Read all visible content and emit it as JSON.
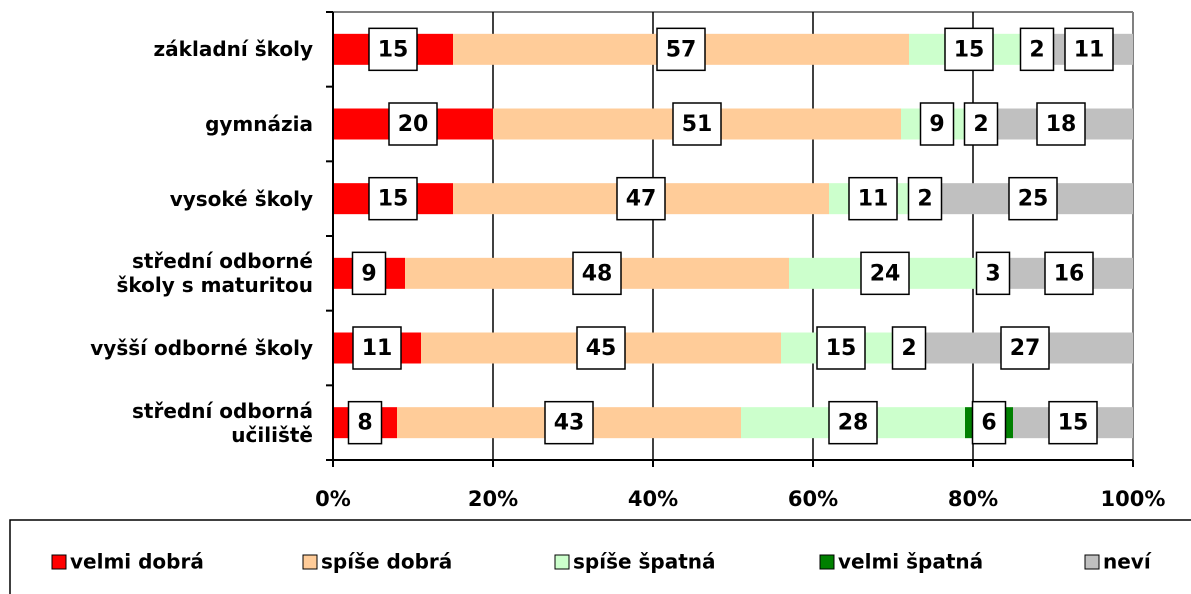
{
  "chart_data": {
    "type": "bar",
    "orientation": "horizontal",
    "stacked": true,
    "categories": [
      "základní školy",
      "gymnázia",
      "vysoké školy",
      "střední odborné\nškoly s maturitou",
      "vyšší odborné školy",
      "střední odborná\nučiliště"
    ],
    "series": [
      {
        "name": "velmi dobrá",
        "color": "#ff0000",
        "values": [
          15,
          20,
          15,
          9,
          11,
          8
        ]
      },
      {
        "name": "spíše dobrá",
        "color": "#ffcc99",
        "values": [
          57,
          51,
          47,
          48,
          45,
          43
        ]
      },
      {
        "name": "spíše špatná",
        "color": "#ccffcc",
        "values": [
          15,
          9,
          11,
          24,
          15,
          28
        ]
      },
      {
        "name": "velmi špatná",
        "color": "#008000",
        "values": [
          2,
          2,
          2,
          3,
          2,
          6
        ]
      },
      {
        "name": "neví",
        "color": "#c0c0c0",
        "values": [
          11,
          18,
          25,
          16,
          27,
          15
        ]
      }
    ],
    "xlim": [
      0,
      100
    ],
    "xticks": [
      {
        "value": 0,
        "label": "0%"
      },
      {
        "value": 20,
        "label": "20%"
      },
      {
        "value": 40,
        "label": "40%"
      },
      {
        "value": 60,
        "label": "60%"
      },
      {
        "value": 80,
        "label": "80%"
      },
      {
        "value": 100,
        "label": "100%"
      }
    ],
    "grid": true,
    "legend": "bottom"
  }
}
